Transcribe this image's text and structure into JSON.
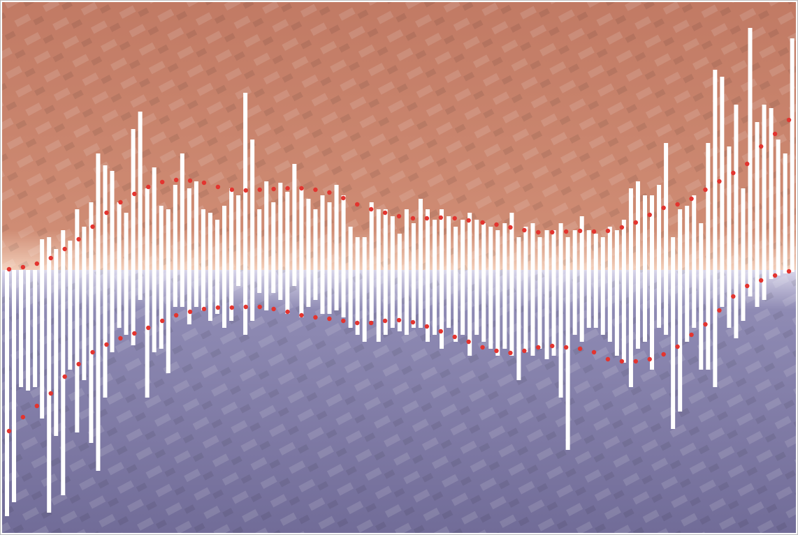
{
  "chart_data": {
    "type": "diverging_bar",
    "xlim": [
      0,
      1140
    ],
    "ylim": [
      -377,
      384
    ],
    "series": [
      {
        "color": "#ffffff",
        "values": [
          0,
          0,
          0,
          0,
          0,
          44,
          47,
          30,
          57,
          42,
          87,
          62,
          97,
          167,
          150,
          142,
          97,
          82,
          202,
          227,
          117,
          147,
          92,
          87,
          122,
          167,
          117,
          127,
          87,
          82,
          72,
          92,
          117,
          107,
          254,
          187,
          87,
          127,
          97,
          125,
          112,
          152,
          117,
          102,
          87,
          107,
          97,
          122,
          107,
          62,
          47,
          47,
          97,
          87,
          87,
          77,
          52,
          87,
          67,
          102,
          87,
          72,
          87,
          77,
          62,
          72,
          82,
          72,
          67,
          62,
          57,
          67,
          82,
          47,
          62,
          67,
          47,
          57,
          57,
          67,
          47,
          57,
          77,
          57,
          52,
          47,
          62,
          57,
          72,
          117,
          127,
          107,
          107,
          122,
          182,
          47,
          87,
          92,
          107,
          67,
          182,
          287,
          277,
          177,
          237,
          117,
          347,
          212,
          237,
          232,
          187,
          167,
          332
        ]
      },
      {
        "color": "#ffffff",
        "values": [
          -353,
          -333,
          -168,
          -173,
          -168,
          -213,
          -348,
          -238,
          -323,
          -143,
          -233,
          -158,
          -248,
          -288,
          -183,
          -118,
          -83,
          -93,
          -108,
          -43,
          -183,
          -118,
          -113,
          -148,
          -53,
          -53,
          -78,
          -53,
          -58,
          -73,
          -63,
          -83,
          -73,
          -23,
          -93,
          -73,
          -33,
          -58,
          -33,
          -43,
          -63,
          -23,
          -68,
          -53,
          -43,
          -63,
          -63,
          -58,
          -68,
          -83,
          -93,
          -103,
          -73,
          -103,
          -93,
          -83,
          -88,
          -93,
          -83,
          -83,
          -103,
          -93,
          -113,
          -83,
          -103,
          -93,
          -123,
          -93,
          -103,
          -113,
          -123,
          -113,
          -123,
          -158,
          -118,
          -123,
          -113,
          -128,
          -123,
          -183,
          -258,
          -93,
          -103,
          -83,
          -83,
          -93,
          -103,
          -123,
          -133,
          -168,
          -113,
          -103,
          -143,
          -83,
          -93,
          -228,
          -203,
          -103,
          -83,
          -143,
          -143,
          -168,
          -53,
          -83,
          -98,
          -73,
          -38,
          -53,
          -43,
          -13,
          -8,
          -5,
          -3
        ]
      }
    ],
    "lines": [
      {
        "color": "#e3342f",
        "x": [
          10,
          30,
          50,
          70,
          90,
          110,
          130,
          150,
          170,
          190,
          210,
          230,
          250,
          270,
          290,
          310,
          330,
          350,
          370,
          390,
          410,
          430,
          450,
          470,
          490,
          510,
          530,
          550,
          570,
          590,
          610,
          630,
          650,
          670,
          690,
          710,
          730,
          750,
          770,
          790,
          810,
          830,
          850,
          870,
          890,
          910,
          930,
          950,
          970,
          990,
          1010,
          1030,
          1050,
          1070,
          1090,
          1110,
          1130
        ],
        "values": [
          1,
          4,
          9,
          17,
          30,
          44,
          62,
          82,
          97,
          109,
          119,
          126,
          129,
          128,
          125,
          119,
          115,
          114,
          115,
          116,
          117,
          117,
          115,
          111,
          103,
          94,
          87,
          82,
          77,
          74,
          74,
          75,
          74,
          71,
          68,
          65,
          61,
          57,
          54,
          54,
          55,
          56,
          55,
          56,
          61,
          68,
          79,
          89,
          94,
          102,
          115,
          127,
          139,
          152,
          177,
          195,
          215
        ]
      },
      {
        "color": "#e3342f",
        "x": [
          10,
          30,
          50,
          70,
          90,
          110,
          130,
          150,
          170,
          190,
          210,
          230,
          250,
          270,
          290,
          310,
          330,
          350,
          370,
          390,
          410,
          430,
          450,
          470,
          490,
          510,
          530,
          550,
          570,
          590,
          610,
          630,
          650,
          670,
          690,
          710,
          730,
          750,
          770,
          790,
          810,
          830,
          850,
          870,
          890,
          910,
          930,
          950,
          970,
          990,
          1010,
          1030,
          1050,
          1070,
          1090,
          1110,
          1130
        ],
        "values": [
          -231,
          -211,
          -195,
          -177,
          -153,
          -135,
          -118,
          -107,
          -98,
          -91,
          -83,
          -73,
          -65,
          -60,
          -56,
          -54,
          -54,
          -53,
          -53,
          -56,
          -60,
          -65,
          -68,
          -70,
          -73,
          -76,
          -76,
          -73,
          -72,
          -75,
          -81,
          -88,
          -96,
          -103,
          -111,
          -116,
          -119,
          -116,
          -111,
          -109,
          -111,
          -113,
          -118,
          -128,
          -131,
          -131,
          -128,
          -121,
          -110,
          -93,
          -78,
          -58,
          -38,
          -23,
          -15,
          -8,
          -2
        ]
      }
    ]
  }
}
